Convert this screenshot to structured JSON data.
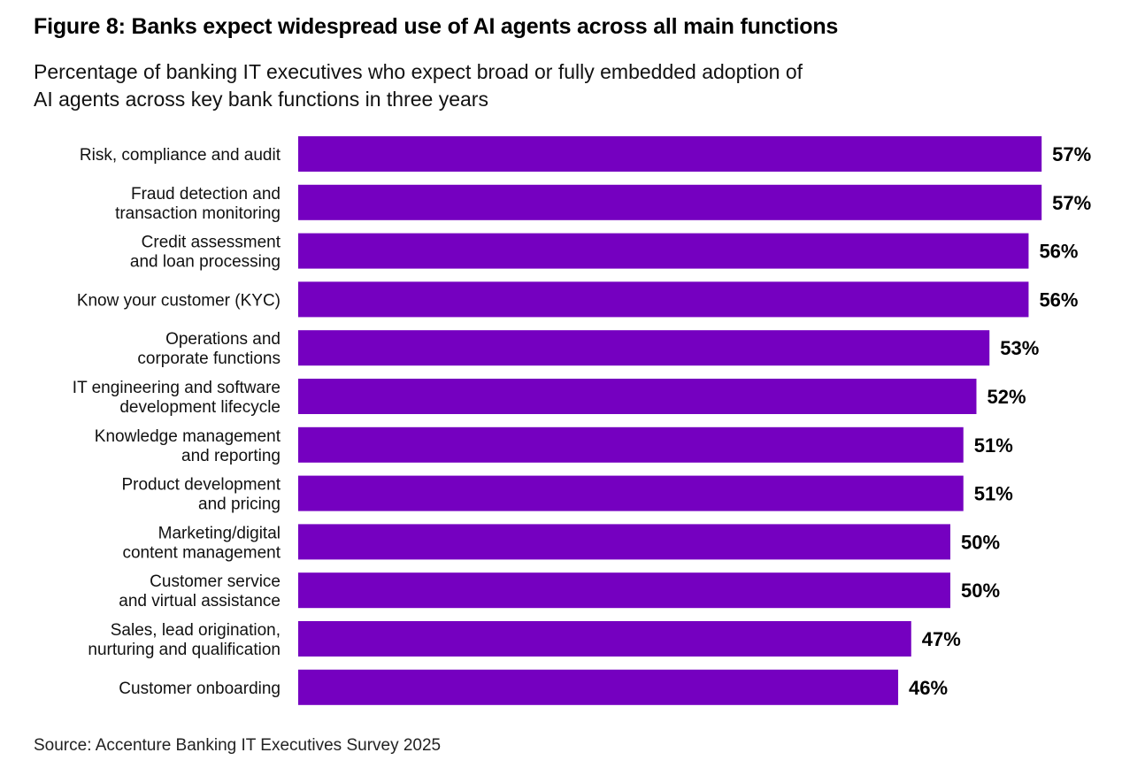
{
  "figure": {
    "title": "Figure 8: Banks expect widespread use of AI agents across all main functions",
    "subtitle_lines": [
      "Percentage of banking IT executives who expect broad or fully embedded adoption of",
      "AI agents across key bank functions in three years"
    ],
    "source": "Source: Accenture Banking IT Executives Survey 2025"
  },
  "chart_data": {
    "type": "bar",
    "orientation": "horizontal",
    "title": "Figure 8: Banks expect widespread use of AI agents across all main functions",
    "subtitle": "Percentage of banking IT executives who expect broad or fully embedded adoption of AI agents across key bank functions in three years",
    "xlabel": "",
    "ylabel": "",
    "unit": "%",
    "grid": false,
    "legend": "none",
    "xlim": [
      0,
      57
    ],
    "bar_color": "#7500C0",
    "categories": [
      [
        "Risk, compliance and audit"
      ],
      [
        "Fraud detection and",
        "transaction monitoring"
      ],
      [
        "Credit assessment",
        "and loan processing"
      ],
      [
        "Know your customer (KYC)"
      ],
      [
        "Operations and",
        "corporate functions"
      ],
      [
        "IT engineering and software",
        "development lifecycle"
      ],
      [
        "Knowledge management",
        "and reporting"
      ],
      [
        "Product development",
        "and pricing"
      ],
      [
        "Marketing/digital",
        "content management"
      ],
      [
        "Customer service",
        "and virtual assistance"
      ],
      [
        "Sales, lead origination,",
        "nurturing and qualification"
      ],
      [
        "Customer onboarding"
      ]
    ],
    "values": [
      57,
      57,
      56,
      56,
      53,
      52,
      51,
      51,
      50,
      50,
      47,
      46
    ],
    "value_labels": [
      "57%",
      "57%",
      "56%",
      "56%",
      "53%",
      "52%",
      "51%",
      "51%",
      "50%",
      "50%",
      "47%",
      "46%"
    ]
  }
}
